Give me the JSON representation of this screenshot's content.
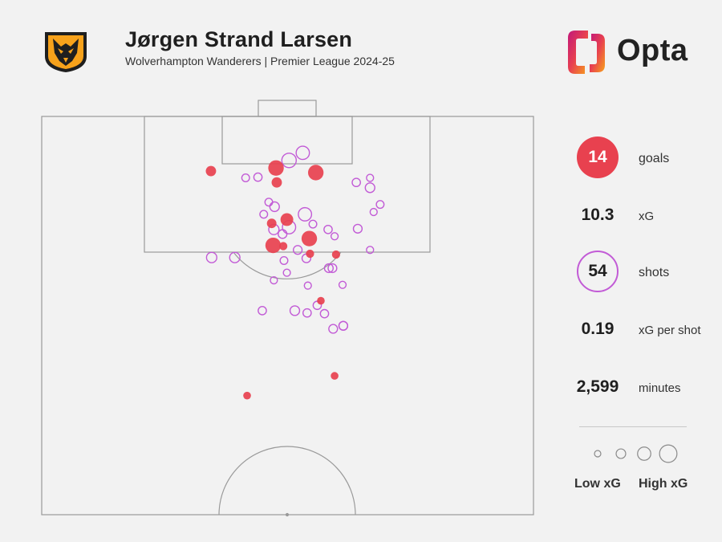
{
  "header": {
    "title": "Jørgen Strand Larsen",
    "subtitle": "Wolverhampton Wanderers | Premier League 2024-25",
    "brand": "Opta"
  },
  "colors": {
    "goal": "#e8414f",
    "shot": "#c25bd6",
    "pitch_line": "#9a9a9a",
    "background": "#f2f2f2",
    "badge_orange": "#f7a21b"
  },
  "icons": {
    "club_badge": "wolf-head-badge-icon",
    "brand_logo": "opta-logo-icon"
  },
  "stats": {
    "goals_value": "14",
    "goals_label": "goals",
    "xg_value": "10.3",
    "xg_label": "xG",
    "shots_value": "54",
    "shots_label": "shots",
    "xg_per_shot_value": "0.19",
    "xg_per_shot_label": "xG per shot",
    "minutes_value": "2,599",
    "minutes_label": "minutes"
  },
  "legend": {
    "low_label": "Low xG",
    "high_label": "High xG",
    "xg_steps": [
      0.02,
      0.08,
      0.2,
      0.4
    ]
  },
  "chart_data": {
    "type": "scatter",
    "title": "",
    "xlabel": "",
    "ylabel": "",
    "units": "metres from goal line (y) and from pitch centre line (x, negative = left)",
    "xlim": [
      -34,
      34
    ],
    "ylim": [
      0,
      52.5
    ],
    "goals": [
      {
        "x": -10.6,
        "y": 7.2,
        "xg": 0.1
      },
      {
        "x": -1.6,
        "y": 6.8,
        "xg": 0.3
      },
      {
        "x": 3.9,
        "y": 7.4,
        "xg": 0.3
      },
      {
        "x": -1.5,
        "y": 8.7,
        "xg": 0.1
      },
      {
        "x": -0.1,
        "y": 13.6,
        "xg": 0.18
      },
      {
        "x": -2.2,
        "y": 14.1,
        "xg": 0.08
      },
      {
        "x": 3.0,
        "y": 16.1,
        "xg": 0.3
      },
      {
        "x": -2.0,
        "y": 17.0,
        "xg": 0.3
      },
      {
        "x": -0.6,
        "y": 17.1,
        "xg": 0.05
      },
      {
        "x": 3.1,
        "y": 18.1,
        "xg": 0.05
      },
      {
        "x": 6.7,
        "y": 18.2,
        "xg": 0.05
      },
      {
        "x": 4.6,
        "y": 24.3,
        "xg": 0.04
      },
      {
        "x": 6.5,
        "y": 34.2,
        "xg": 0.04
      },
      {
        "x": -5.6,
        "y": 36.8,
        "xg": 0.04
      }
    ],
    "shots": [
      {
        "x": 2.1,
        "y": 4.8,
        "xg": 0.2
      },
      {
        "x": 0.2,
        "y": 5.8,
        "xg": 0.25
      },
      {
        "x": -5.8,
        "y": 8.1,
        "xg": 0.04
      },
      {
        "x": -4.1,
        "y": 8.0,
        "xg": 0.05
      },
      {
        "x": 9.5,
        "y": 8.7,
        "xg": 0.05
      },
      {
        "x": 11.4,
        "y": 8.1,
        "xg": 0.03
      },
      {
        "x": 11.4,
        "y": 9.4,
        "xg": 0.08
      },
      {
        "x": -1.8,
        "y": 11.9,
        "xg": 0.08
      },
      {
        "x": 2.4,
        "y": 12.9,
        "xg": 0.2
      },
      {
        "x": 12.8,
        "y": 11.6,
        "xg": 0.04
      },
      {
        "x": 11.9,
        "y": 12.6,
        "xg": 0.03
      },
      {
        "x": -3.3,
        "y": 12.9,
        "xg": 0.04
      },
      {
        "x": 0.2,
        "y": 14.6,
        "xg": 0.2
      },
      {
        "x": -1.9,
        "y": 14.9,
        "xg": 0.1
      },
      {
        "x": 5.6,
        "y": 14.9,
        "xg": 0.05
      },
      {
        "x": 6.5,
        "y": 15.8,
        "xg": 0.03
      },
      {
        "x": -0.7,
        "y": 15.5,
        "xg": 0.06
      },
      {
        "x": 1.4,
        "y": 17.6,
        "xg": 0.06
      },
      {
        "x": 11.4,
        "y": 17.6,
        "xg": 0.03
      },
      {
        "x": -10.5,
        "y": 18.6,
        "xg": 0.1
      },
      {
        "x": -7.3,
        "y": 18.6,
        "xg": 0.1
      },
      {
        "x": 2.6,
        "y": 18.7,
        "xg": 0.06
      },
      {
        "x": -0.5,
        "y": 19.0,
        "xg": 0.04
      },
      {
        "x": 5.7,
        "y": 20.0,
        "xg": 0.06
      },
      {
        "x": 6.2,
        "y": 20.0,
        "xg": 0.06
      },
      {
        "x": -0.1,
        "y": 20.6,
        "xg": 0.03
      },
      {
        "x": 2.8,
        "y": 22.3,
        "xg": 0.03
      },
      {
        "x": 4.1,
        "y": 24.9,
        "xg": 0.05
      },
      {
        "x": 1.0,
        "y": 25.6,
        "xg": 0.08
      },
      {
        "x": -3.5,
        "y": 25.6,
        "xg": 0.05
      },
      {
        "x": 2.7,
        "y": 25.9,
        "xg": 0.05
      },
      {
        "x": 5.1,
        "y": 26.0,
        "xg": 0.05
      },
      {
        "x": 6.3,
        "y": 28.0,
        "xg": 0.06
      },
      {
        "x": 7.7,
        "y": 27.6,
        "xg": 0.06
      },
      {
        "x": 7.7,
        "y": 27.6,
        "xg": 0.06
      },
      {
        "x": 9.7,
        "y": 14.8,
        "xg": 0.06
      },
      {
        "x": -1.9,
        "y": 21.6,
        "xg": 0.03
      },
      {
        "x": 3.5,
        "y": 14.2,
        "xg": 0.04
      },
      {
        "x": -2.6,
        "y": 11.3,
        "xg": 0.04
      },
      {
        "x": 7.6,
        "y": 22.2,
        "xg": 0.03
      }
    ]
  }
}
